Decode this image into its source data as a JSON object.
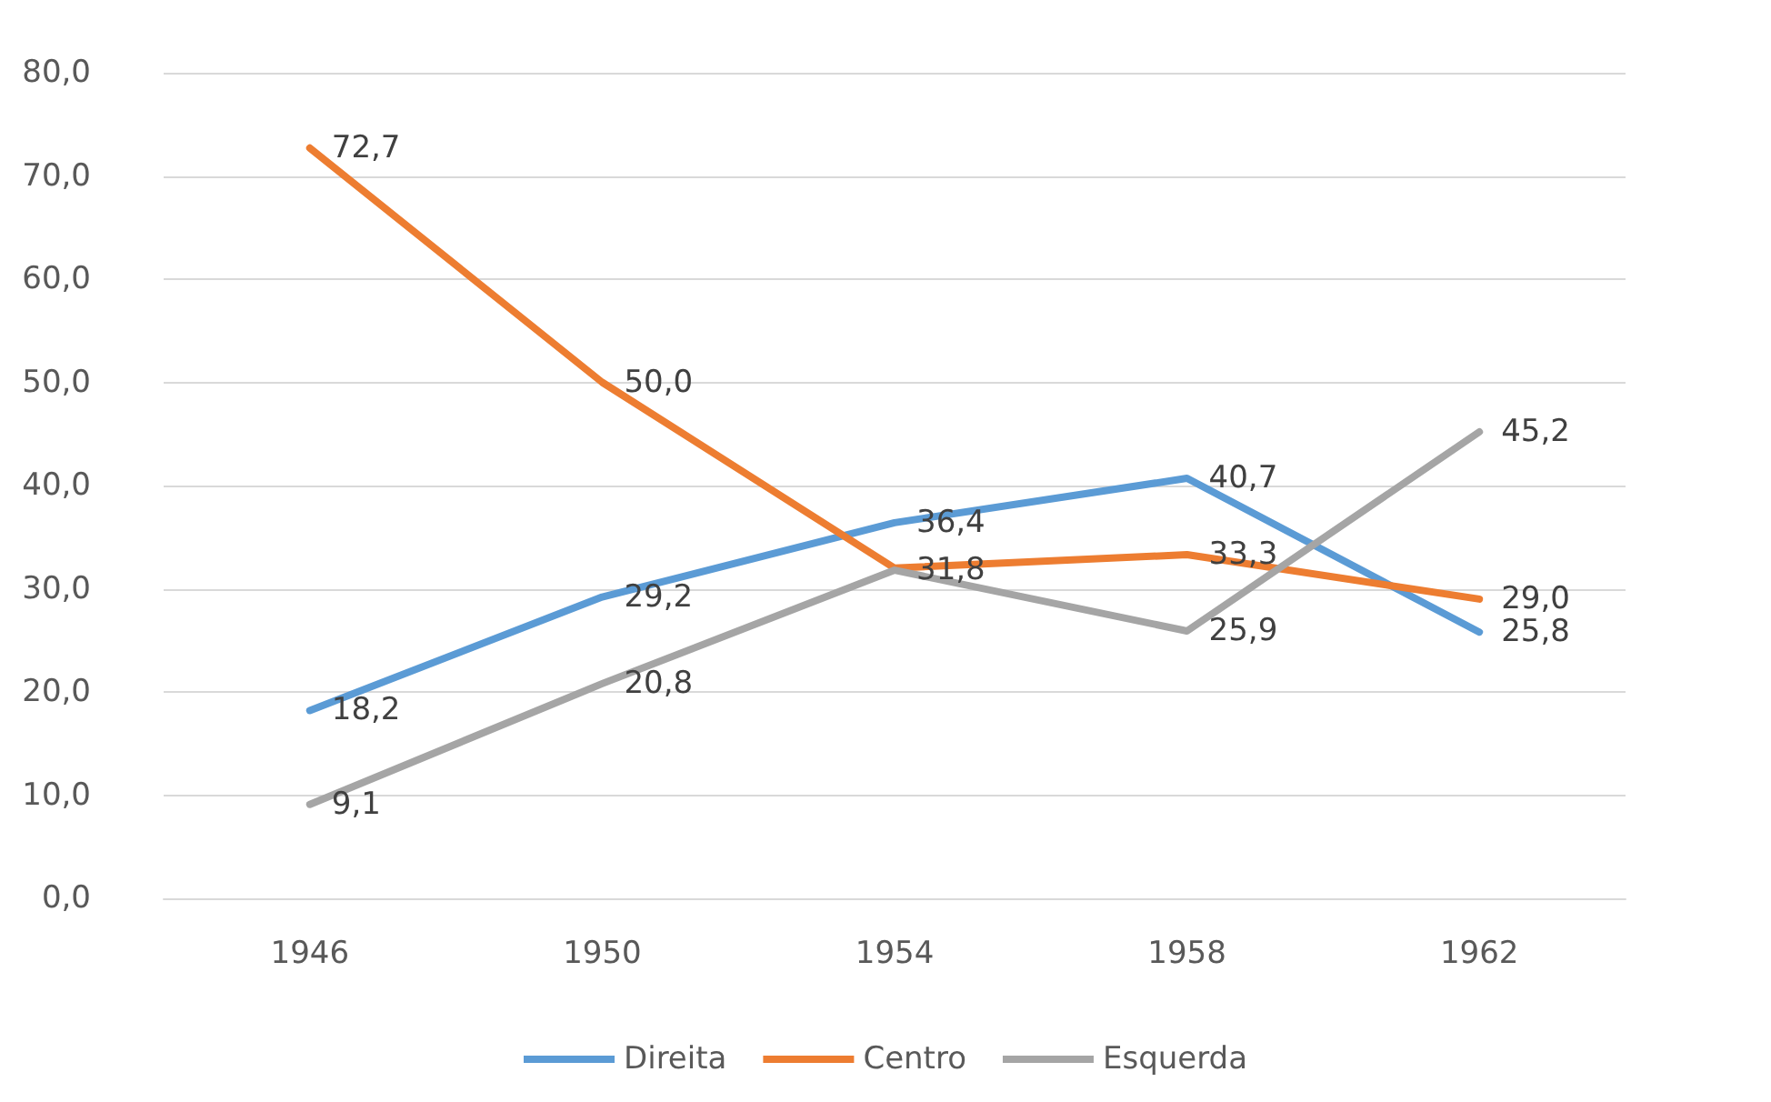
{
  "chart_data": {
    "type": "line",
    "categories": [
      "1946",
      "1950",
      "1954",
      "1958",
      "1962"
    ],
    "series": [
      {
        "name": "Direita",
        "color": "#5b9bd5",
        "values": [
          18.2,
          29.2,
          36.4,
          40.7,
          25.8
        ],
        "value_labels": [
          "18,2",
          "29,2",
          "36,4",
          "40,7",
          "25,8"
        ]
      },
      {
        "name": "Centro",
        "color": "#ed7d31",
        "values": [
          72.7,
          50.0,
          32,
          33.3,
          29.0
        ],
        "value_labels": [
          "72,7",
          "50,0",
          null,
          "33,3",
          "29,0"
        ]
      },
      {
        "name": "Esquerda",
        "color": "#a5a5a5",
        "values": [
          9.1,
          20.8,
          31.8,
          25.9,
          45.2
        ],
        "value_labels": [
          "9,1",
          "20,8",
          "31,8",
          "25,9",
          "45,2"
        ]
      }
    ],
    "ylim": [
      0,
      80
    ],
    "yticks": [
      {
        "value": 0,
        "label": "0,0"
      },
      {
        "value": 10,
        "label": "10,0"
      },
      {
        "value": 20,
        "label": "20,0"
      },
      {
        "value": 30,
        "label": "30,0"
      },
      {
        "value": 40,
        "label": "40,0"
      },
      {
        "value": 50,
        "label": "50,0"
      },
      {
        "value": 60,
        "label": "60,0"
      },
      {
        "value": 70,
        "label": "70,0"
      },
      {
        "value": 80,
        "label": "80,0"
      }
    ],
    "grid": "y",
    "legend": "bottom",
    "marker": "none",
    "line_style": "solid"
  }
}
